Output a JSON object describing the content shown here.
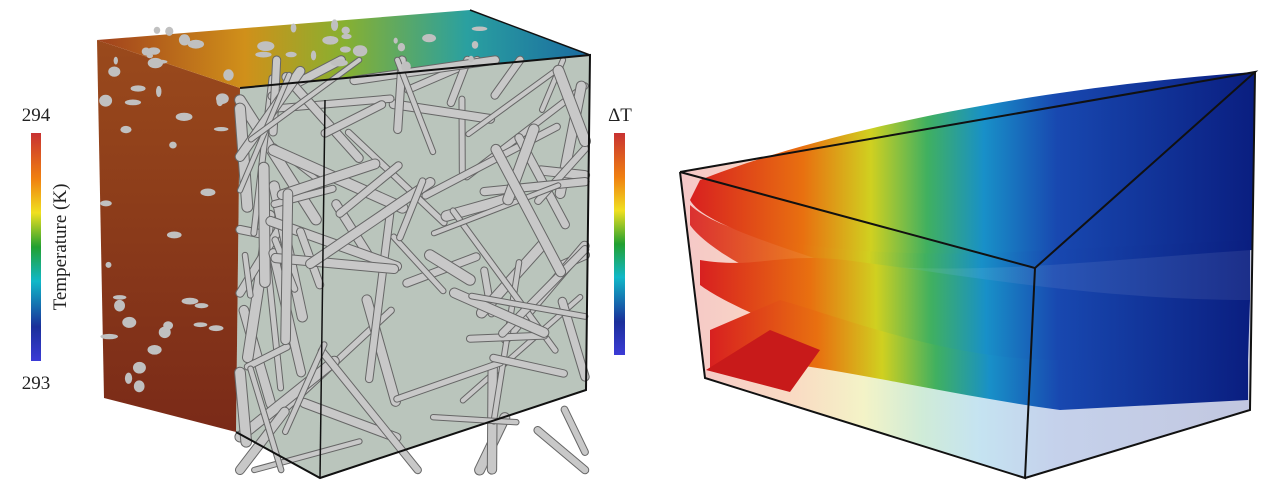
{
  "left_colorbar": {
    "max_label": 294,
    "min_label": 293,
    "title": "Temperature (K)"
  },
  "right_colorbar": {
    "title": "ΔT"
  }
}
